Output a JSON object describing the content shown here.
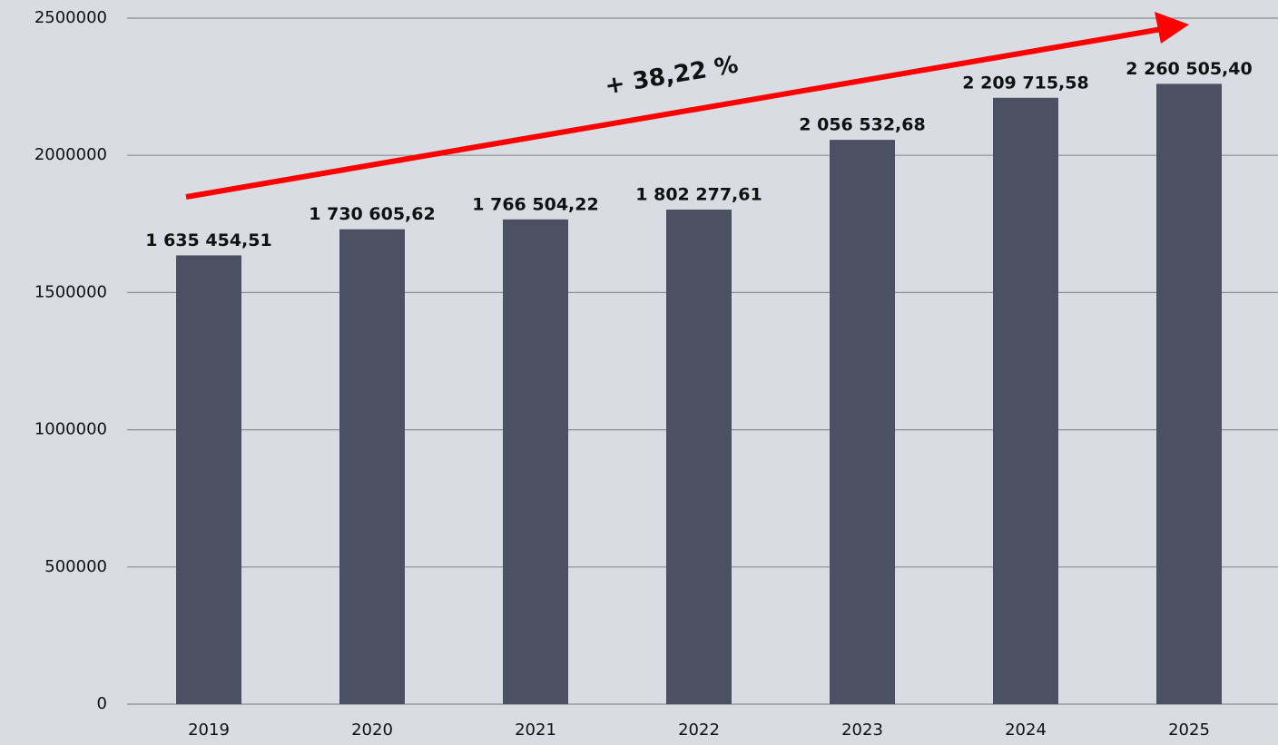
{
  "chart_data": {
    "type": "bar",
    "categories": [
      "2019",
      "2020",
      "2021",
      "2022",
      "2023",
      "2024",
      "2025"
    ],
    "values": [
      1635454.51,
      1730605.62,
      1766504.22,
      1802277.61,
      2056532.68,
      2209715.58,
      2260505.4
    ],
    "value_labels": [
      "1 635 454,51",
      "1 730 605,62",
      "1 766 504,22",
      "1 802 277,61",
      "2 056 532,68",
      "2 209 715,58",
      "2 260 505,40"
    ],
    "color": "#4b5063",
    "ylim": [
      0,
      2500000
    ],
    "yticks": [
      0,
      500000,
      1000000,
      1500000,
      2000000,
      2500000
    ],
    "grid": true,
    "annotation": "+ 38,22 %",
    "annotation_color": "#ff0000"
  }
}
